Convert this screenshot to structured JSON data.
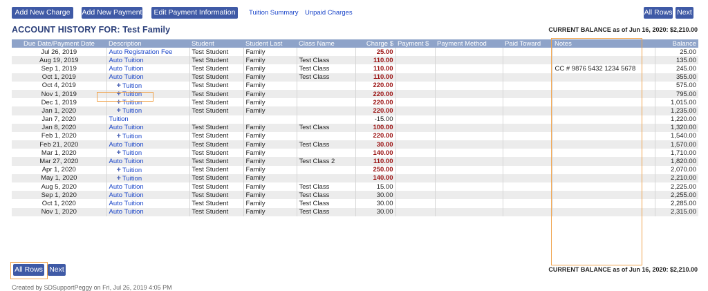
{
  "toolbar": {
    "add_charge": "Add New Charge",
    "add_payment": "Add New Payment",
    "edit_payment": "Edit Payment Information",
    "tuition_summary": "Tuition Summary",
    "unpaid_charges": "Unpaid Charges",
    "all_rows": "All Rows",
    "next": "Next"
  },
  "title": "ACCOUNT HISTORY FOR: Test Family",
  "current_balance": "CURRENT BALANCE as of Jun 16, 2020: $2,210.00",
  "columns": [
    "Due Date/Payment Date",
    "Description",
    "Student",
    "Student Last",
    "Class Name",
    "Charge $",
    "Payment $",
    "Payment Method",
    "Paid Toward",
    "Notes",
    "Balance"
  ],
  "rows": [
    {
      "date": "Jul 26, 2019",
      "desc": "Auto Registration Fee",
      "plus": false,
      "student": "Test Student",
      "last": "Family",
      "class": "",
      "charge": "25.00",
      "bold": true,
      "payment": "",
      "method": "",
      "paid": "",
      "notes": "",
      "balance": "25.00"
    },
    {
      "date": "Aug 19, 2019",
      "desc": "Auto Tuition",
      "plus": false,
      "student": "Test Student",
      "last": "Family",
      "class": "Test Class",
      "charge": "110.00",
      "bold": true,
      "payment": "",
      "method": "",
      "paid": "",
      "notes": "",
      "balance": "135.00"
    },
    {
      "date": "Sep 1, 2019",
      "desc": "Auto Tuition",
      "plus": false,
      "student": "Test Student",
      "last": "Family",
      "class": "Test Class",
      "charge": "110.00",
      "bold": true,
      "payment": "",
      "method": "",
      "paid": "",
      "notes": "CC # 9876 5432 1234 5678",
      "balance": "245.00"
    },
    {
      "date": "Oct 1, 2019",
      "desc": "Auto Tuition",
      "plus": false,
      "student": "Test Student",
      "last": "Family",
      "class": "Test Class",
      "charge": "110.00",
      "bold": true,
      "payment": "",
      "method": "",
      "paid": "",
      "notes": "",
      "balance": "355.00"
    },
    {
      "date": "Oct 4, 2019",
      "desc": "Tuition",
      "plus": true,
      "student": "Test Student",
      "last": "Family",
      "class": "",
      "charge": "220.00",
      "bold": true,
      "payment": "",
      "method": "",
      "paid": "",
      "notes": "",
      "balance": "575.00"
    },
    {
      "date": "Nov 1, 2019",
      "desc": "Tuition",
      "plus": true,
      "student": "Test Student",
      "last": "Family",
      "class": "",
      "charge": "220.00",
      "bold": true,
      "payment": "",
      "method": "",
      "paid": "",
      "notes": "",
      "balance": "795.00"
    },
    {
      "date": "Dec 1, 2019",
      "desc": "Tuition",
      "plus": true,
      "student": "Test Student",
      "last": "Family",
      "class": "",
      "charge": "220.00",
      "bold": true,
      "payment": "",
      "method": "",
      "paid": "",
      "notes": "",
      "balance": "1,015.00"
    },
    {
      "date": "Jan 1, 2020",
      "desc": "Tuition",
      "plus": true,
      "student": "Test Student",
      "last": "Family",
      "class": "",
      "charge": "220.00",
      "bold": true,
      "payment": "",
      "method": "",
      "paid": "",
      "notes": "",
      "balance": "1,235.00"
    },
    {
      "date": "Jan 7, 2020",
      "desc": "Tuition",
      "plus": false,
      "student": "",
      "last": "",
      "class": "",
      "charge": "-15.00",
      "bold": false,
      "payment": "",
      "method": "",
      "paid": "",
      "notes": "",
      "balance": "1,220.00"
    },
    {
      "date": "Jan 8, 2020",
      "desc": "Auto Tuition",
      "plus": false,
      "student": "Test Student",
      "last": "Family",
      "class": "Test Class",
      "charge": "100.00",
      "bold": true,
      "payment": "",
      "method": "",
      "paid": "",
      "notes": "",
      "balance": "1,320.00"
    },
    {
      "date": "Feb 1, 2020",
      "desc": "Tuition",
      "plus": true,
      "student": "Test Student",
      "last": "Family",
      "class": "",
      "charge": "220.00",
      "bold": true,
      "payment": "",
      "method": "",
      "paid": "",
      "notes": "",
      "balance": "1,540.00"
    },
    {
      "date": "Feb 21, 2020",
      "desc": "Auto Tuition",
      "plus": false,
      "student": "Test Student",
      "last": "Family",
      "class": "Test Class",
      "charge": "30.00",
      "bold": true,
      "payment": "",
      "method": "",
      "paid": "",
      "notes": "",
      "balance": "1,570.00"
    },
    {
      "date": "Mar 1, 2020",
      "desc": "Tuition",
      "plus": true,
      "student": "Test Student",
      "last": "Family",
      "class": "",
      "charge": "140.00",
      "bold": true,
      "payment": "",
      "method": "",
      "paid": "",
      "notes": "",
      "balance": "1,710.00"
    },
    {
      "date": "Mar 27, 2020",
      "desc": "Auto Tuition",
      "plus": false,
      "student": "Test Student",
      "last": "Family",
      "class": "Test Class 2",
      "charge": "110.00",
      "bold": true,
      "payment": "",
      "method": "",
      "paid": "",
      "notes": "",
      "balance": "1,820.00"
    },
    {
      "date": "Apr 1, 2020",
      "desc": "Tuition",
      "plus": true,
      "student": "Test Student",
      "last": "Family",
      "class": "",
      "charge": "250.00",
      "bold": true,
      "payment": "",
      "method": "",
      "paid": "",
      "notes": "",
      "balance": "2,070.00"
    },
    {
      "date": "May 1, 2020",
      "desc": "Tuition",
      "plus": true,
      "student": "Test Student",
      "last": "Family",
      "class": "",
      "charge": "140.00",
      "bold": true,
      "payment": "",
      "method": "",
      "paid": "",
      "notes": "",
      "balance": "2,210.00"
    },
    {
      "date": "Aug 5, 2020",
      "desc": "Auto Tuition",
      "plus": false,
      "student": "Test Student",
      "last": "Family",
      "class": "Test Class",
      "charge": "15.00",
      "bold": false,
      "payment": "",
      "method": "",
      "paid": "",
      "notes": "",
      "balance": "2,225.00"
    },
    {
      "date": "Sep 1, 2020",
      "desc": "Auto Tuition",
      "plus": false,
      "student": "Test Student",
      "last": "Family",
      "class": "Test Class",
      "charge": "30.00",
      "bold": false,
      "payment": "",
      "method": "",
      "paid": "",
      "notes": "",
      "balance": "2,255.00"
    },
    {
      "date": "Oct 1, 2020",
      "desc": "Auto Tuition",
      "plus": false,
      "student": "Test Student",
      "last": "Family",
      "class": "Test Class",
      "charge": "30.00",
      "bold": false,
      "payment": "",
      "method": "",
      "paid": "",
      "notes": "",
      "balance": "2,285.00"
    },
    {
      "date": "Nov 1, 2020",
      "desc": "Auto Tuition",
      "plus": false,
      "student": "Test Student",
      "last": "Family",
      "class": "Test Class",
      "charge": "30.00",
      "bold": false,
      "payment": "",
      "method": "",
      "paid": "",
      "notes": "",
      "balance": "2,315.00"
    }
  ],
  "bottom": {
    "all_rows": "All Rows",
    "next": "Next",
    "current_balance": "CURRENT BALANCE as of Jun 16, 2020: $2,210.00"
  },
  "footer": "Created by SDSupportPeggy on Fri, Jul 26, 2019 4:05 PM",
  "colors": {
    "button": "#3f5aa6",
    "header": "#8ea3c9",
    "link": "#1a45c9",
    "charge": "#9b1212",
    "highlight": "#f0a24a",
    "title": "#2b3f7a"
  }
}
